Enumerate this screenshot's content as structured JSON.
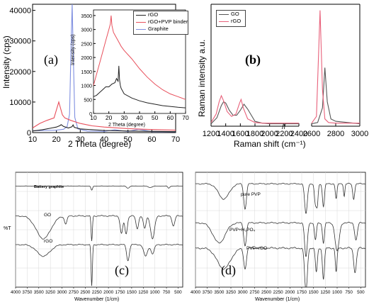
{
  "chart_data": [
    {
      "panel": "(a)",
      "type": "line",
      "xlabel": "2 Theta (degree)",
      "ylabel": "Intensity (cps)",
      "xlim": [
        10,
        70
      ],
      "ylim": [
        0,
        42000
      ],
      "xticks": [
        10,
        20,
        30,
        40,
        50,
        60,
        70
      ],
      "yticks": [
        0,
        10000,
        20000,
        30000,
        40000
      ],
      "colors": {
        "rGO": "#222222",
        "rGO+PVP binder": "#e8505c",
        "Graphite": "#7f8fe0"
      },
      "series": [
        {
          "name": "Graphite",
          "color": "#7f8fe0",
          "x": [
            10,
            15,
            20,
            23,
            24.5,
            25.5,
            26.2,
            26.6,
            27,
            27.7,
            29,
            33,
            40,
            44.5,
            50,
            54.5,
            60,
            70
          ],
          "y": [
            600,
            700,
            800,
            1100,
            2000,
            6000,
            30000,
            42000,
            28000,
            5000,
            1200,
            500,
            400,
            900,
            350,
            1100,
            300,
            250
          ]
        },
        {
          "name": "rGO+PVP binder",
          "color": "#e8505c",
          "x": [
            10,
            13,
            16,
            19,
            21,
            22.5,
            23.5,
            26,
            30,
            35,
            40,
            50,
            60,
            70
          ],
          "y": [
            1500,
            3000,
            4000,
            4800,
            10000,
            5800,
            4800,
            4000,
            3000,
            2200,
            1800,
            1300,
            1000,
            800
          ]
        },
        {
          "name": "rGO",
          "color": "#222222",
          "x": [
            10,
            14,
            18,
            20,
            21.5,
            22,
            23,
            25,
            26.5,
            27,
            27.5,
            30,
            40,
            50,
            70
          ],
          "y": [
            500,
            900,
            1500,
            1800,
            2300,
            2600,
            2000,
            1500,
            1900,
            2500,
            1700,
            1200,
            700,
            500,
            300
          ]
        }
      ],
      "inset": {
        "xlabel": "2 Theta (degree)",
        "ylabel": "Intensity (cps)",
        "xlim": [
          10,
          70
        ],
        "ylim": [
          0,
          3700
        ],
        "xticks": [
          10,
          20,
          30,
          40,
          50,
          60,
          70
        ],
        "yticks": [
          0,
          500,
          1000,
          1500,
          2000,
          2500,
          3000,
          3500
        ],
        "legend": [
          "rGO",
          "rGO+PVP binder",
          "Graphite"
        ],
        "series": [
          {
            "name": "rGO+PVP binder",
            "color": "#e8505c",
            "x": [
              10,
              12,
              14,
              16,
              18,
              20,
              21,
              21.5,
              22,
              23,
              24,
              26,
              28,
              30,
              35,
              40,
              45,
              50,
              55,
              60,
              65,
              70
            ],
            "y": [
              1000,
              1400,
              1800,
              2200,
              2600,
              3000,
              3200,
              3500,
              3150,
              2900,
              2800,
              2600,
              2400,
              2250,
              1950,
              1600,
              1300,
              1050,
              850,
              700,
              600,
              500
            ]
          },
          {
            "name": "rGO",
            "color": "#222222",
            "x": [
              10,
              12,
              14,
              16,
              18,
              20,
              22,
              24,
              25,
              26,
              26.5,
              27,
              27.5,
              28,
              30,
              35,
              40,
              45,
              50,
              55,
              60,
              65,
              70
            ],
            "y": [
              600,
              650,
              750,
              850,
              950,
              950,
              1050,
              1100,
              1250,
              1150,
              1700,
              1200,
              1000,
              900,
              700,
              550,
              450,
              380,
              330,
              280,
              250,
              220,
              200
            ]
          }
        ]
      }
    },
    {
      "panel": "(b)",
      "type": "line",
      "xlabel": "Raman shift (cm⁻¹)",
      "ylabel": "Raman intensity a.u.",
      "xticks": [
        1200,
        1400,
        1600,
        1800,
        2000,
        2200,
        2400,
        2600,
        2800,
        3000
      ],
      "axis_break": [
        2400,
        2600
      ],
      "legend": [
        "GO",
        "rGO"
      ],
      "colors": {
        "GO": "#555555",
        "rGO": "#e8607a"
      },
      "ylim": [
        0,
        1
      ],
      "series": [
        {
          "name": "GO",
          "color": "#555555",
          "x": [
            1200,
            1280,
            1340,
            1370,
            1400,
            1450,
            1500,
            1550,
            1600,
            1650,
            1700,
            1800,
            1900,
            2000,
            2100,
            2200,
            2300,
            2400,
            2600,
            2650,
            2690,
            2710,
            2730,
            2760,
            2800,
            2900,
            3000
          ],
          "y": [
            0.02,
            0.07,
            0.17,
            0.2,
            0.19,
            0.13,
            0.09,
            0.09,
            0.13,
            0.18,
            0.14,
            0.04,
            0.025,
            0.02,
            0.02,
            0.02,
            0.02,
            0.02,
            0.02,
            0.03,
            0.15,
            0.48,
            0.2,
            0.06,
            0.04,
            0.03,
            0.02
          ]
        },
        {
          "name": "rGO",
          "color": "#e8607a",
          "x": [
            1200,
            1270,
            1310,
            1340,
            1370,
            1420,
            1480,
            1540,
            1590,
            1610,
            1640,
            1700,
            1800,
            1900,
            2000,
            2100,
            2200,
            2300,
            2400,
            2600,
            2640,
            2670,
            2690,
            2710,
            2740,
            2800,
            2900,
            3000
          ],
          "y": [
            0.03,
            0.1,
            0.2,
            0.25,
            0.21,
            0.12,
            0.08,
            0.1,
            0.19,
            0.22,
            0.15,
            0.06,
            0.03,
            0.025,
            0.025,
            0.025,
            0.025,
            0.025,
            0.025,
            0.025,
            0.08,
            0.95,
            0.3,
            0.06,
            0.03,
            0.025,
            0.025,
            0.025
          ]
        }
      ]
    },
    {
      "panel": "(c)",
      "type": "line",
      "xlabel": "Wavenumber (1/cm)",
      "ylabel": "%T",
      "xlim": [
        4000,
        400
      ],
      "xticks": [
        4000,
        3750,
        3500,
        3250,
        3000,
        2750,
        2500,
        2250,
        2000,
        1750,
        1500,
        1250,
        1000,
        750,
        500
      ],
      "annotations": [
        "Battery graphite",
        "GO",
        "rGO"
      ],
      "series": [
        {
          "name": "Battery graphite",
          "color": "#333333",
          "offset": 0.88,
          "amp": 0.06,
          "dips": [
            [
              2360,
              25,
              0.6
            ],
            [
              1580,
              40,
              0.3
            ],
            [
              1100,
              60,
              0.2
            ],
            [
              700,
              30,
              0.3
            ]
          ]
        },
        {
          "name": "GO",
          "color": "#333333",
          "offset": 0.62,
          "amp": 0.22,
          "dips": [
            [
              3400,
              220,
              0.9
            ],
            [
              2920,
              40,
              0.3
            ],
            [
              2360,
              20,
              1.0
            ],
            [
              1720,
              40,
              0.7
            ],
            [
              1620,
              40,
              0.7
            ],
            [
              1380,
              40,
              0.5
            ],
            [
              1220,
              40,
              0.5
            ],
            [
              1050,
              60,
              0.9
            ],
            [
              600,
              40,
              0.4
            ]
          ]
        },
        {
          "name": "rGO",
          "color": "#333333",
          "offset": 0.37,
          "amp": 0.2,
          "dips": [
            [
              3400,
              200,
              0.5
            ],
            [
              2360,
              20,
              1.8
            ],
            [
              1580,
              40,
              0.7
            ],
            [
              1200,
              60,
              0.5
            ],
            [
              1050,
              50,
              0.4
            ]
          ]
        }
      ]
    },
    {
      "panel": "(d)",
      "type": "line",
      "xlabel": "Wavenumber (1/cm)",
      "xlim": [
        4000,
        400
      ],
      "xticks": [
        4000,
        3750,
        3500,
        3250,
        3000,
        2750,
        2500,
        2250,
        2000,
        1750,
        1500,
        1250,
        1000,
        750,
        500
      ],
      "annotations": [
        "pure PVP",
        "PVP+H₃PO₄",
        "PVP+rGO"
      ],
      "series": [
        {
          "name": "pure PVP",
          "color": "#333333",
          "offset": 0.9,
          "amp": 0.22,
          "dips": [
            [
              3400,
              160,
              0.6
            ],
            [
              2950,
              40,
              1.0
            ],
            [
              1660,
              40,
              1.2
            ],
            [
              1460,
              30,
              0.8
            ],
            [
              1420,
              25,
              0.8
            ],
            [
              1290,
              30,
              0.9
            ],
            [
              1020,
              25,
              0.6
            ],
            [
              850,
              20,
              0.5
            ],
            [
              650,
              30,
              0.6
            ]
          ]
        },
        {
          "name": "PVP+H₃PO₄",
          "color": "#333333",
          "offset": 0.56,
          "amp": 0.25,
          "dips": [
            [
              3500,
              180,
              0.7
            ],
            [
              2950,
              40,
              0.8
            ],
            [
              1660,
              40,
              1.2
            ],
            [
              1460,
              30,
              0.6
            ],
            [
              1290,
              30,
              0.7
            ],
            [
              1000,
              60,
              1.0
            ],
            [
              600,
              40,
              0.6
            ]
          ]
        },
        {
          "name": "PVP+rGO",
          "color": "#333333",
          "offset": 0.34,
          "amp": 0.3,
          "dips": [
            [
              3400,
              200,
              0.6
            ],
            [
              2950,
              40,
              0.6
            ],
            [
              1660,
              40,
              1.3
            ],
            [
              1440,
              30,
              0.7
            ],
            [
              1290,
              30,
              0.9
            ],
            [
              1020,
              25,
              0.7
            ],
            [
              620,
              40,
              0.7
            ]
          ]
        }
      ]
    }
  ],
  "labels": {
    "a": "(a)",
    "b": "(b)",
    "c": "(c)",
    "d": "(d)",
    "break_mark": "//"
  }
}
